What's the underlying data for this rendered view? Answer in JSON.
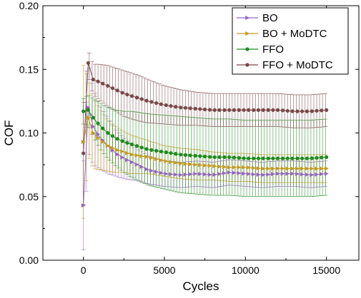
{
  "chart_data": {
    "type": "line",
    "xlabel": "Cycles",
    "ylabel": "COF",
    "xlim": [
      -2500,
      17000
    ],
    "ylim": [
      0.0,
      0.2
    ],
    "xticks": [
      0,
      5000,
      10000,
      15000
    ],
    "xtick_labels": [
      "0",
      "5000",
      "10000",
      "15000"
    ],
    "yticks": [
      0.0,
      0.05,
      0.1,
      0.15,
      0.2
    ],
    "ytick_labels": [
      "0.00",
      "0.05",
      "0.10",
      "0.15",
      "0.20"
    ],
    "grid": false,
    "legend_position": "top-right",
    "x": [
      0,
      300,
      600,
      1000,
      1500,
      2000,
      2500,
      3000,
      3500,
      4000,
      5000,
      6000,
      7000,
      8000,
      9000,
      10000,
      11000,
      12000,
      13000,
      14000,
      15000
    ],
    "series": [
      {
        "name": "BO",
        "color": "#9467bd",
        "marker": "triangle-right",
        "values": [
          0.043,
          0.12,
          0.105,
          0.097,
          0.09,
          0.084,
          0.08,
          0.077,
          0.074,
          0.071,
          0.068,
          0.067,
          0.068,
          0.067,
          0.069,
          0.068,
          0.067,
          0.068,
          0.068,
          0.067,
          0.068
        ],
        "error": [
          0.035,
          0.035,
          0.03,
          0.025,
          0.022,
          0.018,
          0.016,
          0.014,
          0.012,
          0.011,
          0.01,
          0.01,
          0.01,
          0.01,
          0.01,
          0.01,
          0.01,
          0.01,
          0.01,
          0.01,
          0.01
        ]
      },
      {
        "name": "BO + MoDTC",
        "color": "#c49a1e",
        "marker": "triangle-right",
        "values": [
          0.093,
          0.112,
          0.1,
          0.095,
          0.09,
          0.087,
          0.085,
          0.083,
          0.082,
          0.081,
          0.078,
          0.076,
          0.075,
          0.074,
          0.073,
          0.073,
          0.072,
          0.072,
          0.072,
          0.072,
          0.072
        ],
        "error": [
          0.06,
          0.03,
          0.028,
          0.024,
          0.02,
          0.018,
          0.016,
          0.015,
          0.014,
          0.013,
          0.012,
          0.012,
          0.012,
          0.011,
          0.011,
          0.011,
          0.011,
          0.011,
          0.011,
          0.011,
          0.011
        ]
      },
      {
        "name": "FFO",
        "color": "#1e8a1e",
        "marker": "circle",
        "values": [
          0.117,
          0.118,
          0.112,
          0.106,
          0.1,
          0.096,
          0.093,
          0.091,
          0.089,
          0.087,
          0.085,
          0.083,
          0.082,
          0.081,
          0.081,
          0.08,
          0.08,
          0.08,
          0.08,
          0.08,
          0.081
        ],
        "error": [
          0.01,
          0.012,
          0.015,
          0.018,
          0.02,
          0.022,
          0.024,
          0.026,
          0.027,
          0.028,
          0.029,
          0.03,
          0.03,
          0.03,
          0.03,
          0.03,
          0.03,
          0.03,
          0.03,
          0.03,
          0.03
        ]
      },
      {
        "name": "FFO + MoDTC",
        "color": "#7a4848",
        "marker": "circle",
        "values": [
          0.084,
          0.155,
          0.142,
          0.14,
          0.137,
          0.134,
          0.131,
          0.129,
          0.127,
          0.125,
          0.122,
          0.12,
          0.119,
          0.118,
          0.118,
          0.118,
          0.118,
          0.118,
          0.117,
          0.117,
          0.118
        ],
        "error": [
          0.04,
          0.01,
          0.012,
          0.014,
          0.016,
          0.017,
          0.018,
          0.018,
          0.018,
          0.017,
          0.015,
          0.014,
          0.013,
          0.013,
          0.013,
          0.013,
          0.013,
          0.013,
          0.013,
          0.013,
          0.013
        ]
      }
    ]
  }
}
